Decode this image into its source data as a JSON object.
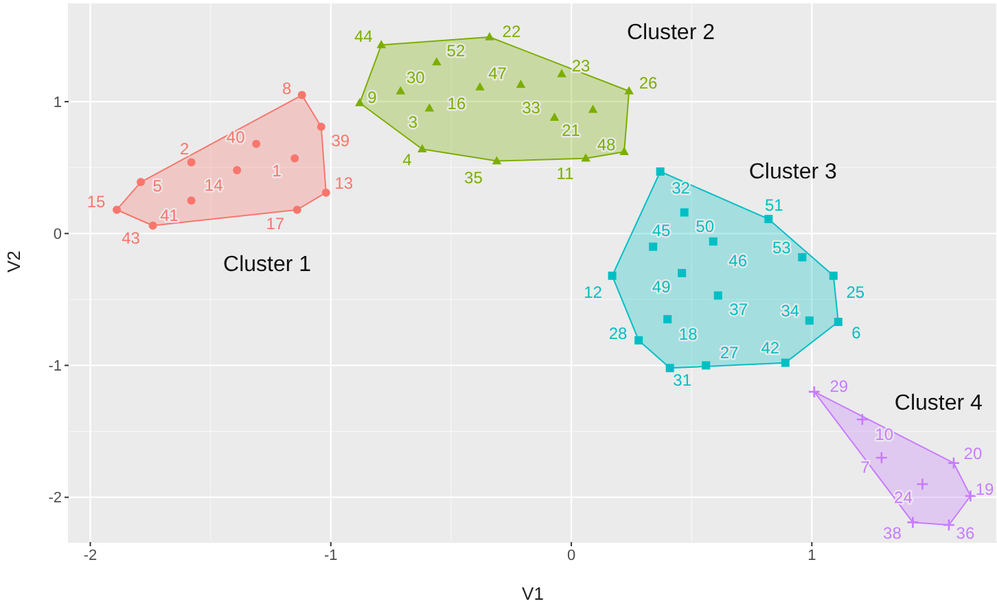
{
  "chart_data": {
    "type": "scatter",
    "xlabel": "V1",
    "ylabel": "V2",
    "xlim": [
      -2.09,
      1.77
    ],
    "ylim": [
      -2.34,
      1.75
    ],
    "xticks": [
      -2,
      -1,
      0,
      1
    ],
    "yticks": [
      -2,
      -1,
      0,
      1
    ],
    "grid": true,
    "series": [
      {
        "name": "Cluster 1",
        "color": "#f8766d",
        "marker": "circle",
        "x": [
          -1.12,
          -1.04,
          -1.31,
          -1.15,
          -1.58,
          -1.39,
          -1.79,
          -1.02,
          -1.58,
          -1.89,
          -1.14,
          -1.74
        ],
        "values": [
          1.05,
          0.81,
          0.68,
          0.57,
          0.54,
          0.48,
          0.39,
          0.31,
          0.25,
          0.18,
          0.18,
          0.06
        ]
      },
      {
        "name": "Cluster 2",
        "color": "#7cae00",
        "marker": "triangle",
        "x": [
          -0.79,
          -0.34,
          0.24,
          0.22,
          0.06,
          -0.31,
          -0.62,
          -0.88,
          -0.56,
          -0.71,
          -0.59,
          -0.38,
          -0.21,
          -0.04,
          -0.07,
          0.09
        ],
        "values": [
          1.43,
          1.49,
          1.08,
          0.62,
          0.57,
          0.55,
          0.64,
          0.99,
          1.3,
          1.08,
          0.95,
          1.11,
          1.13,
          1.21,
          0.88,
          0.94
        ]
      },
      {
        "name": "Cluster 3",
        "color": "#00bfc4",
        "marker": "square",
        "x": [
          0.37,
          0.82,
          0.96,
          1.09,
          1.11,
          0.89,
          0.56,
          0.41,
          0.28,
          0.17,
          0.34,
          0.47,
          0.59,
          0.46,
          0.61,
          0.4,
          0.99
        ],
        "values": [
          0.47,
          0.11,
          -0.18,
          -0.32,
          -0.67,
          -0.98,
          -1.0,
          -1.02,
          -0.81,
          -0.32,
          -0.1,
          0.16,
          -0.06,
          -0.3,
          -0.47,
          -0.65,
          -0.66
        ]
      },
      {
        "name": "Cluster 4",
        "color": "#c77cff",
        "marker": "cross",
        "x": [
          1.01,
          1.21,
          1.29,
          1.59,
          1.66,
          1.46,
          1.42,
          1.57
        ],
        "values": [
          -1.2,
          -1.41,
          -1.7,
          -1.74,
          -1.99,
          -1.9,
          -2.19,
          -2.21
        ]
      }
    ],
    "annotations": [
      {
        "text": "8",
        "x": -1.12,
        "y": 1.05
      },
      {
        "text": "39",
        "x": -1.04,
        "y": 0.81
      },
      {
        "text": "40",
        "x": -1.31,
        "y": 0.68
      },
      {
        "text": "1",
        "x": -1.15,
        "y": 0.57
      },
      {
        "text": "2",
        "x": -1.58,
        "y": 0.54
      },
      {
        "text": "14",
        "x": -1.39,
        "y": 0.48
      },
      {
        "text": "5",
        "x": -1.79,
        "y": 0.39
      },
      {
        "text": "13",
        "x": -1.02,
        "y": 0.31
      },
      {
        "text": "41",
        "x": -1.58,
        "y": 0.25
      },
      {
        "text": "15",
        "x": -1.89,
        "y": 0.18
      },
      {
        "text": "17",
        "x": -1.14,
        "y": 0.18
      },
      {
        "text": "43",
        "x": -1.74,
        "y": 0.06
      },
      {
        "text": "44",
        "x": -0.79,
        "y": 1.43
      },
      {
        "text": "22",
        "x": -0.34,
        "y": 1.49
      },
      {
        "text": "26",
        "x": 0.24,
        "y": 1.08
      },
      {
        "text": "48",
        "x": 0.22,
        "y": 0.62
      },
      {
        "text": "11",
        "x": 0.06,
        "y": 0.57
      },
      {
        "text": "35",
        "x": -0.31,
        "y": 0.55
      },
      {
        "text": "4",
        "x": -0.62,
        "y": 0.64
      },
      {
        "text": "9",
        "x": -0.88,
        "y": 0.99
      },
      {
        "text": "52",
        "x": -0.56,
        "y": 1.3
      },
      {
        "text": "30",
        "x": -0.71,
        "y": 1.08
      },
      {
        "text": "3",
        "x": -0.59,
        "y": 0.95
      },
      {
        "text": "16",
        "x": -0.38,
        "y": 1.11
      },
      {
        "text": "47",
        "x": -0.21,
        "y": 1.13
      },
      {
        "text": "23",
        "x": -0.04,
        "y": 1.21
      },
      {
        "text": "33",
        "x": -0.07,
        "y": 0.88
      },
      {
        "text": "21",
        "x": 0.09,
        "y": 0.94
      },
      {
        "text": "32",
        "x": 0.37,
        "y": 0.47
      },
      {
        "text": "51",
        "x": 0.82,
        "y": 0.11
      },
      {
        "text": "53",
        "x": 0.96,
        "y": -0.18
      },
      {
        "text": "25",
        "x": 1.09,
        "y": -0.32
      },
      {
        "text": "6",
        "x": 1.11,
        "y": -0.67
      },
      {
        "text": "42",
        "x": 0.89,
        "y": -0.98
      },
      {
        "text": "27",
        "x": 0.56,
        "y": -1.0
      },
      {
        "text": "31",
        "x": 0.41,
        "y": -1.02
      },
      {
        "text": "28",
        "x": 0.28,
        "y": -0.81
      },
      {
        "text": "12",
        "x": 0.17,
        "y": -0.32
      },
      {
        "text": "45",
        "x": 0.34,
        "y": -0.1
      },
      {
        "text": "50",
        "x": 0.47,
        "y": 0.16
      },
      {
        "text": "46",
        "x": 0.59,
        "y": -0.06
      },
      {
        "text": "49",
        "x": 0.46,
        "y": -0.3
      },
      {
        "text": "37",
        "x": 0.61,
        "y": -0.47
      },
      {
        "text": "18",
        "x": 0.4,
        "y": -0.65
      },
      {
        "text": "34",
        "x": 0.99,
        "y": -0.66
      },
      {
        "text": "29",
        "x": 1.01,
        "y": -1.2
      },
      {
        "text": "10",
        "x": 1.21,
        "y": -1.41
      },
      {
        "text": "7",
        "x": 1.29,
        "y": -1.7
      },
      {
        "text": "20",
        "x": 1.59,
        "y": -1.74
      },
      {
        "text": "19",
        "x": 1.66,
        "y": -1.99
      },
      {
        "text": "24",
        "x": 1.46,
        "y": -1.9
      },
      {
        "text": "38",
        "x": 1.42,
        "y": -2.19
      },
      {
        "text": "36",
        "x": 1.57,
        "y": -2.21
      }
    ]
  }
}
